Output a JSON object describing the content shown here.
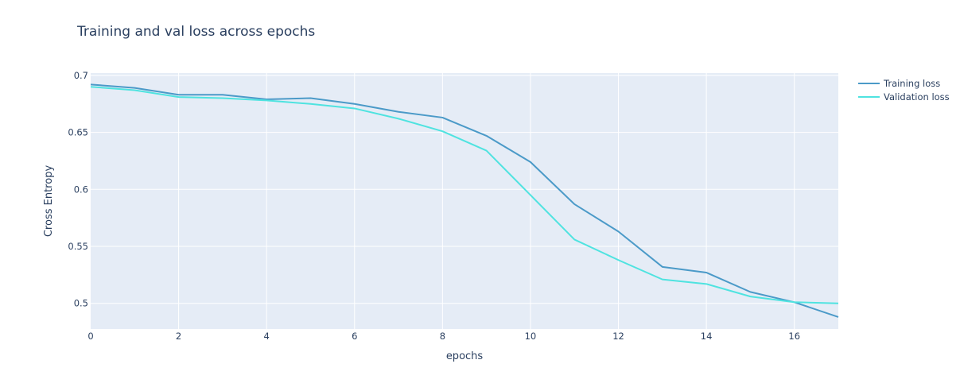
{
  "chart_data": {
    "type": "line",
    "title": "Training and val loss across epochs",
    "xlabel": "epochs",
    "ylabel": "Cross Entropy",
    "xlim": [
      0,
      17
    ],
    "ylim": [
      0.4775,
      0.702
    ],
    "x_ticks": [
      "0",
      "2",
      "4",
      "6",
      "8",
      "10",
      "12",
      "14",
      "16"
    ],
    "x_tick_values": [
      0,
      2,
      4,
      6,
      8,
      10,
      12,
      14,
      16
    ],
    "y_ticks": [
      "0.5",
      "0.55",
      "0.6",
      "0.65",
      "0.7"
    ],
    "y_tick_values": [
      0.5,
      0.55,
      0.6,
      0.65,
      0.7
    ],
    "grid": true,
    "legend_position": "top-right",
    "plot_background": "#e5ecf6",
    "grid_color": "#ffffff",
    "x": [
      0,
      1,
      2,
      3,
      4,
      5,
      6,
      7,
      8,
      9,
      10,
      11,
      12,
      13,
      14,
      15,
      16,
      17
    ],
    "series": [
      {
        "name": "Training loss",
        "color": "#4b9ac8",
        "values": [
          0.692,
          0.689,
          0.683,
          0.683,
          0.679,
          0.68,
          0.675,
          0.668,
          0.663,
          0.647,
          0.624,
          0.587,
          0.563,
          0.532,
          0.527,
          0.51,
          0.501,
          0.488
        ]
      },
      {
        "name": "Validation loss",
        "color": "#4fe3e0",
        "values": [
          0.69,
          0.687,
          0.681,
          0.68,
          0.678,
          0.675,
          0.671,
          0.662,
          0.651,
          0.634,
          0.595,
          0.556,
          0.538,
          0.521,
          0.517,
          0.506,
          0.501,
          0.5
        ]
      }
    ]
  }
}
